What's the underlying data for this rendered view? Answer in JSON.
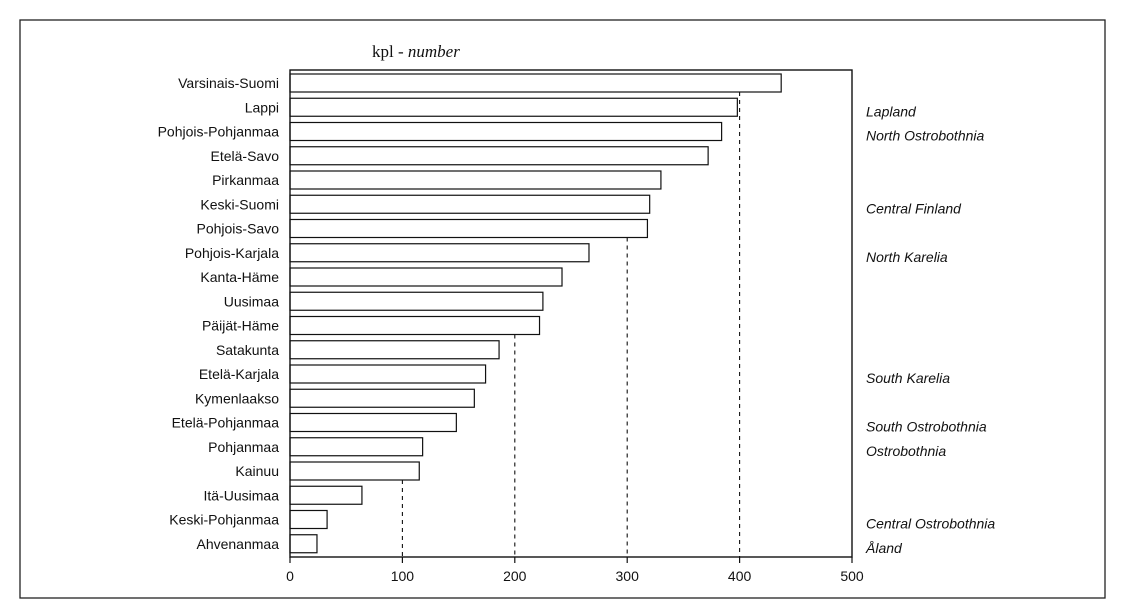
{
  "chart_data": {
    "type": "bar",
    "orientation": "horizontal",
    "title_prefix": "kpl - ",
    "title_emphasis": "number",
    "categories": [
      "Varsinais-Suomi",
      "Lappi",
      "Pohjois-Pohjanmaa",
      "Etelä-Savo",
      "Pirkanmaa",
      "Keski-Suomi",
      "Pohjois-Savo",
      "Pohjois-Karjala",
      "Kanta-Häme",
      "Uusimaa",
      "Päijät-Häme",
      "Satakunta",
      "Etelä-Karjala",
      "Kymenlaakso",
      "Etelä-Pohjanmaa",
      "Pohjanmaa",
      "Kainuu",
      "Itä-Uusimaa",
      "Keski-Pohjanmaa",
      "Ahvenanmaa"
    ],
    "values": [
      437,
      398,
      384,
      372,
      330,
      320,
      318,
      266,
      242,
      225,
      222,
      186,
      174,
      164,
      148,
      118,
      115,
      64,
      33,
      24
    ],
    "english_names": [
      "",
      "Lapland",
      "North Ostrobothnia",
      "",
      "",
      "Central Finland",
      "",
      "North Karelia",
      "",
      "",
      "",
      "",
      "South Karelia",
      "",
      "South Ostrobothnia",
      "Ostrobothnia",
      "",
      "",
      "Central Ostrobothnia",
      "Åland"
    ],
    "xlim": [
      0,
      500
    ],
    "xticks": [
      0,
      100,
      200,
      300,
      400,
      500
    ],
    "dashed_reference_lines": [
      100,
      200,
      300,
      400
    ],
    "grid": false
  }
}
